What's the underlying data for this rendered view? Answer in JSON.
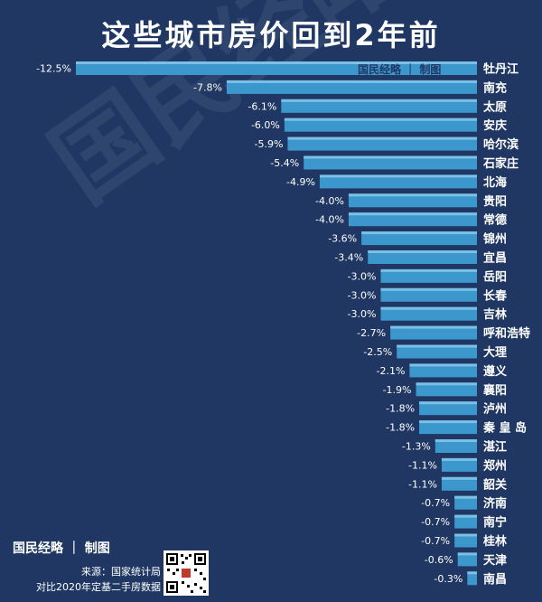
{
  "title": "这些城市房价回到2年前",
  "watermark": "国民经略",
  "inner_brand": "国民经略 ｜ 制图",
  "brand": "国民经略 ｜ 制图",
  "source_line1": "来源：国家统计局",
  "source_line2": "对比2020年定基二手房数据",
  "icons": {
    "qr": "qr-code-icon"
  },
  "colors": {
    "background": "#1f3762",
    "bar": "#3c97cc",
    "bar_highlight": "#7cc0e6"
  },
  "chart_data": {
    "type": "bar",
    "orientation": "horizontal",
    "title": "这些城市房价回到2年前",
    "categories": [
      "牡丹江",
      "南充",
      "太原",
      "安庆",
      "哈尔滨",
      "石家庄",
      "北海",
      "贵阳",
      "常德",
      "锦州",
      "宜昌",
      "岳阳",
      "长春",
      "吉林",
      "呼和浩特",
      "大理",
      "遵义",
      "襄阳",
      "泸州",
      "秦 皇 岛",
      "湛江",
      "郑州",
      "韶关",
      "济南",
      "南宁",
      "桂林",
      "天津",
      "南昌"
    ],
    "values": [
      -12.5,
      -7.8,
      -6.1,
      -6.0,
      -5.9,
      -5.4,
      -4.9,
      -4.0,
      -4.0,
      -3.6,
      -3.4,
      -3.0,
      -3.0,
      -3.0,
      -2.7,
      -2.5,
      -2.1,
      -1.9,
      -1.8,
      -1.8,
      -1.3,
      -1.1,
      -1.1,
      -0.7,
      -0.7,
      -0.7,
      -0.6,
      -0.3
    ],
    "value_labels": [
      "-12.5%",
      "-7.8%",
      "-6.1%",
      "-6.0%",
      "-5.9%",
      "-5.4%",
      "-4.9%",
      "-4.0%",
      "-4.0%",
      "-3.6%",
      "-3.4%",
      "-3.0%",
      "-3.0%",
      "-3.0%",
      "-2.7%",
      "-2.5%",
      "-2.1%",
      "-1.9%",
      "-1.8%",
      "-1.8%",
      "-1.3%",
      "-1.1%",
      "-1.1%",
      "-0.7%",
      "-0.7%",
      "-0.7%",
      "-0.6%",
      "-0.3%"
    ],
    "xlim": [
      -12.5,
      0
    ],
    "grid": false,
    "legend": "none"
  }
}
